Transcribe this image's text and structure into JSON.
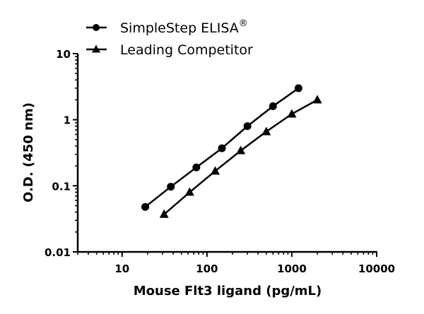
{
  "chart_data": {
    "type": "line",
    "title": "",
    "xlabel": "Mouse Flt3 ligand (pg/mL)",
    "ylabel": "O.D. (450 nm)",
    "xscale": "log",
    "yscale": "log",
    "xlim": [
      3,
      10000
    ],
    "ylim": [
      0.01,
      10
    ],
    "xticks": [
      "10",
      "100",
      "1000",
      "10000"
    ],
    "yticks": [
      "0.01",
      "0.1",
      "1",
      "10"
    ],
    "grid": false,
    "legend_position": "top-left",
    "series": [
      {
        "name": "SimpleStep ELISA",
        "name_mark": "®",
        "marker": "circle",
        "color": "#000000",
        "x": [
          18.75,
          37.5,
          75,
          150,
          300,
          600,
          1200
        ],
        "y": [
          0.048,
          0.097,
          0.19,
          0.37,
          0.8,
          1.6,
          3.0
        ]
      },
      {
        "name": "Leading Competitor",
        "marker": "triangle",
        "color": "#000000",
        "x": [
          31.25,
          62.5,
          125,
          250,
          500,
          1000,
          2000
        ],
        "y": [
          0.037,
          0.08,
          0.167,
          0.34,
          0.66,
          1.22,
          2.0
        ]
      }
    ]
  }
}
